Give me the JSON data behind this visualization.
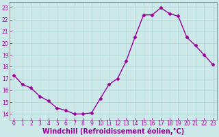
{
  "x": [
    0,
    1,
    2,
    3,
    4,
    5,
    6,
    7,
    8,
    9,
    10,
    11,
    12,
    13,
    14,
    15,
    16,
    17,
    18,
    19,
    20,
    21,
    22,
    23
  ],
  "y": [
    17.3,
    16.5,
    16.2,
    15.5,
    15.1,
    14.5,
    14.3,
    14.0,
    14.0,
    14.1,
    15.3,
    16.5,
    17.0,
    18.5,
    20.5,
    22.4,
    22.4,
    23.0,
    22.5,
    22.3,
    20.5,
    19.8,
    19.0,
    18.2
  ],
  "line_color": "#990099",
  "marker": "D",
  "marker_size": 2.5,
  "background_color": "#cce8e8",
  "grid_color": "#b0d8d8",
  "xlabel": "Windchill (Refroidissement éolien,°C)",
  "ylabel": "",
  "title": "",
  "xlim": [
    -0.5,
    23.5
  ],
  "ylim": [
    13.5,
    23.5
  ],
  "yticks": [
    14,
    15,
    16,
    17,
    18,
    19,
    20,
    21,
    22,
    23
  ],
  "xticks": [
    0,
    1,
    2,
    3,
    4,
    5,
    6,
    7,
    8,
    9,
    10,
    11,
    12,
    13,
    14,
    15,
    16,
    17,
    18,
    19,
    20,
    21,
    22,
    23
  ],
  "tick_fontsize": 5.5,
  "label_fontsize": 7.0,
  "spine_color": "#888888",
  "line_width": 1.0
}
